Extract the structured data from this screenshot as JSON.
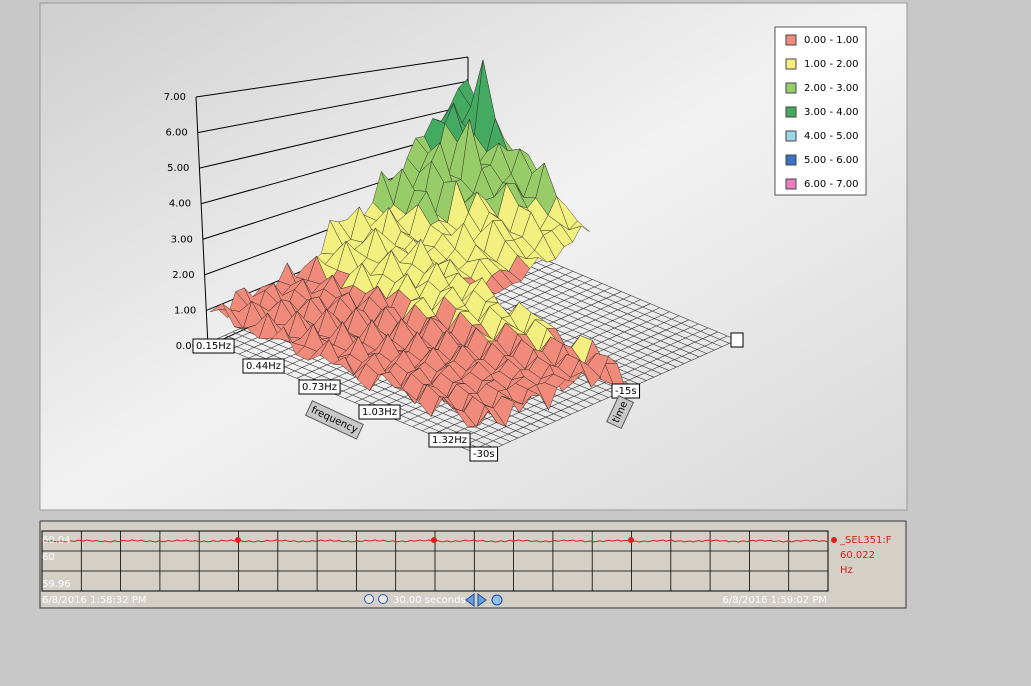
{
  "chart_3d": {
    "z_ticks": [
      "7.00",
      "6.00",
      "5.00",
      "4.00",
      "3.00",
      "2.00",
      "1.00",
      "0.00"
    ],
    "frequency_ticks": [
      "0.15Hz",
      "0.44Hz",
      "0.73Hz",
      "1.03Hz",
      "1.32Hz"
    ],
    "frequency_label": "frequency",
    "time_ticks": [
      "-30s",
      "-15s"
    ],
    "time_label": "time",
    "legend": [
      {
        "label": "0.00 - 1.00",
        "color": "#f08a7a"
      },
      {
        "label": "1.00 - 2.00",
        "color": "#f4f080"
      },
      {
        "label": "2.00 - 3.00",
        "color": "#98cc68"
      },
      {
        "label": "3.00 - 4.00",
        "color": "#44aa62"
      },
      {
        "label": "4.00 - 5.00",
        "color": "#98d8e8"
      },
      {
        "label": "5.00 - 6.00",
        "color": "#3c72c2"
      },
      {
        "label": "6.00 - 7.00",
        "color": "#e87cc0"
      }
    ]
  },
  "trend": {
    "y_labels": [
      "60.04",
      "60",
      "59.96"
    ],
    "start_time": "6/8/2016 1:58:32 PM",
    "end_time": "6/8/2016 1:59:02 PM",
    "span": "30.00 seconds",
    "tag": "_SEL351:F",
    "value": "60.022",
    "unit": "Hz"
  }
}
